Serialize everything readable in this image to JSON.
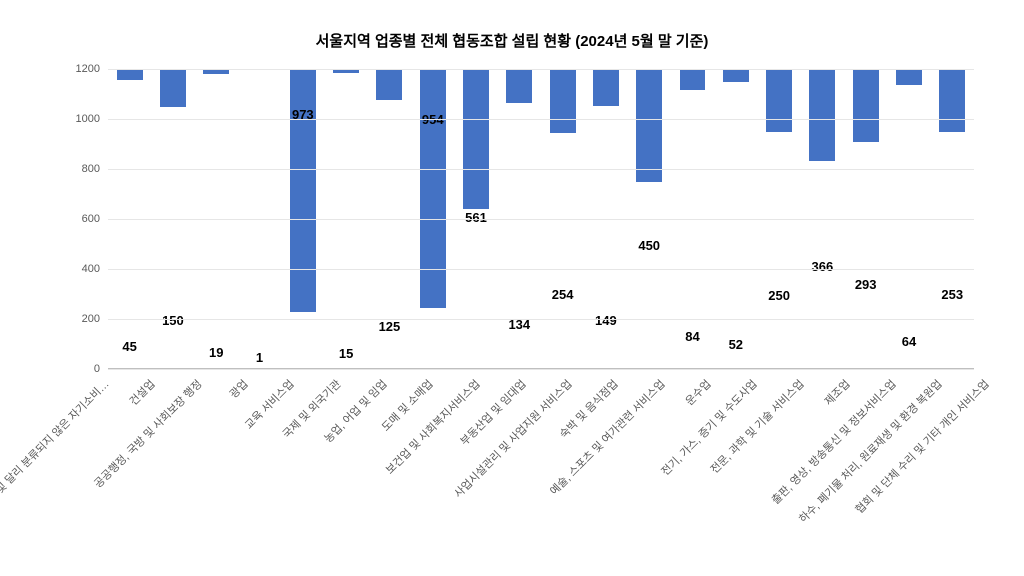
{
  "chart": {
    "type": "bar",
    "title": "서울지역 업종별 전체 협동조합 설립 현황 (2024년 5월 말 기준)",
    "title_fontsize": 15,
    "label_fontsize": 11,
    "value_fontsize": 13,
    "ylim": [
      0,
      1200
    ],
    "ytick_step": 200,
    "y_ticks": [
      0,
      200,
      400,
      600,
      800,
      1000,
      1200
    ],
    "grid_color": "#e6e6e6",
    "axis_color": "#bfbfbf",
    "text_color": "#595959",
    "value_color": "#000000",
    "background_color": "#ffffff",
    "bar_color": "#4472c4",
    "bar_width": 0.6,
    "categories": [
      "가구내 고용활동 및 달리 분류되지 않은 자기소비…",
      "건설업",
      "공공행정, 국방 및 사회보장 행정",
      "광업",
      "교육 서비스업",
      "국제 및 외국기관",
      "농업, 어업 및 임업",
      "도매 및 소매업",
      "보건업 및 사회복지서비스업",
      "부동산업 및 임대업",
      "사업시설관리 및 사업지원 서비스업",
      "숙박 및 음식점업",
      "예술, 스포츠 및 여가관련 서비스업",
      "운수업",
      "전기, 가스, 증기 및 수도사업",
      "전문, 과학 및 기술 서비스업",
      "제조업",
      "출판, 영상, 방송통신 및 정보서비스업",
      "하수, 폐기물 처리, 원료재생 및 환경 복원업",
      "협회 및 단체 수리 및 기타 개인 서비스업"
    ],
    "values": [
      45,
      150,
      19,
      1,
      973,
      15,
      125,
      954,
      561,
      134,
      254,
      149,
      450,
      84,
      52,
      250,
      366,
      293,
      64,
      253
    ]
  }
}
